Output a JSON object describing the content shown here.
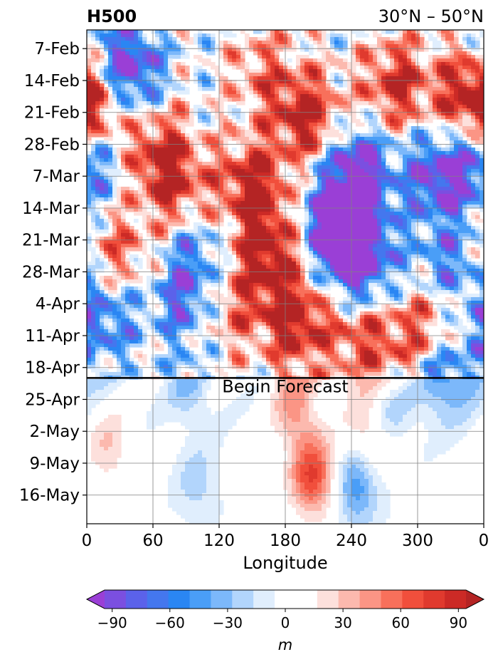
{
  "chart_data": {
    "type": "heatmap",
    "title": "H500",
    "subtitle": "30°N – 50°N",
    "xlabel": "Longitude",
    "ylabel": "",
    "x_ticks": [
      "0",
      "60",
      "120",
      "180",
      "240",
      "300",
      "0"
    ],
    "x_values": [
      0,
      60,
      120,
      180,
      240,
      300,
      360
    ],
    "xlim": [
      0,
      360
    ],
    "y_ticks": [
      "7-Feb",
      "14-Feb",
      "21-Feb",
      "28-Feb",
      "7-Mar",
      "14-Mar",
      "21-Mar",
      "28-Mar",
      "4-Apr",
      "11-Apr",
      "18-Apr",
      "25-Apr",
      "2-May",
      "9-May",
      "16-May"
    ],
    "annotation": "Begin Forecast",
    "forecast_start": "20-Apr",
    "grid": true,
    "colorbar": {
      "label": "m",
      "ticks": [
        "−90",
        "−60",
        "−30",
        "0",
        "30",
        "60",
        "90"
      ],
      "tick_values": [
        -90,
        -60,
        -30,
        0,
        30,
        60,
        90
      ],
      "range": [
        -105,
        105
      ],
      "colors": [
        "#9a3fd6",
        "#7b4fe0",
        "#5b62ea",
        "#4477ee",
        "#2a86f3",
        "#4a9ef7",
        "#7cb8fa",
        "#b2d5fc",
        "#e0eefd",
        "#ffffff",
        "#ffffff",
        "#fde0dc",
        "#fcb9ae",
        "#fb9585",
        "#f8705b",
        "#f14f3c",
        "#e03a2e",
        "#cc2a26",
        "#b42424"
      ]
    },
    "features": [
      {
        "lon": 150,
        "day": 30,
        "value": 100
      },
      {
        "lon": 165,
        "day": 45,
        "value": 100
      },
      {
        "lon": 200,
        "day": 15,
        "value": 100
      },
      {
        "lon": 190,
        "day": 60,
        "value": 100
      },
      {
        "lon": 160,
        "day": 5,
        "value": 50
      },
      {
        "lon": 80,
        "day": 30,
        "value": 80
      },
      {
        "lon": 60,
        "day": 20,
        "value": 80
      },
      {
        "lon": 12,
        "day": 14,
        "value": 100
      },
      {
        "lon": 30,
        "day": 45,
        "value": 60
      },
      {
        "lon": 280,
        "day": 8,
        "value": 90
      },
      {
        "lon": 345,
        "day": 10,
        "value": 85
      },
      {
        "lon": 300,
        "day": 65,
        "value": 75
      },
      {
        "lon": 320,
        "day": 55,
        "value": 70
      },
      {
        "lon": 130,
        "day": 57,
        "value": 55
      },
      {
        "lon": 250,
        "day": 63,
        "value": 75
      },
      {
        "lon": 35,
        "day": 3,
        "value": -90
      },
      {
        "lon": 40,
        "day": 12,
        "value": -60
      },
      {
        "lon": 245,
        "day": 26,
        "value": -100
      },
      {
        "lon": 240,
        "day": 40,
        "value": -90
      },
      {
        "lon": 225,
        "day": 39,
        "value": -85
      },
      {
        "lon": 320,
        "day": 28,
        "value": -100
      },
      {
        "lon": 325,
        "day": 50,
        "value": -95
      },
      {
        "lon": 5,
        "day": 24,
        "value": -75
      },
      {
        "lon": 15,
        "day": 59,
        "value": -70
      },
      {
        "lon": 90,
        "day": 55,
        "value": -70
      },
      {
        "lon": 250,
        "day": 50,
        "value": -75
      },
      {
        "lon": 100,
        "day": 44,
        "value": -45
      },
      {
        "lon": 320,
        "day": 70,
        "value": -85
      },
      {
        "lon": 205,
        "day": 94,
        "value": 80
      },
      {
        "lon": 190,
        "day": 80,
        "value": 45
      },
      {
        "lon": 255,
        "day": 85,
        "value": 35
      },
      {
        "lon": 20,
        "day": 88,
        "value": 30
      },
      {
        "lon": 245,
        "day": 96,
        "value": -55
      },
      {
        "lon": 95,
        "day": 75,
        "value": -30
      },
      {
        "lon": 275,
        "day": 80,
        "value": -25
      },
      {
        "lon": 100,
        "day": 96,
        "value": -25
      }
    ]
  }
}
